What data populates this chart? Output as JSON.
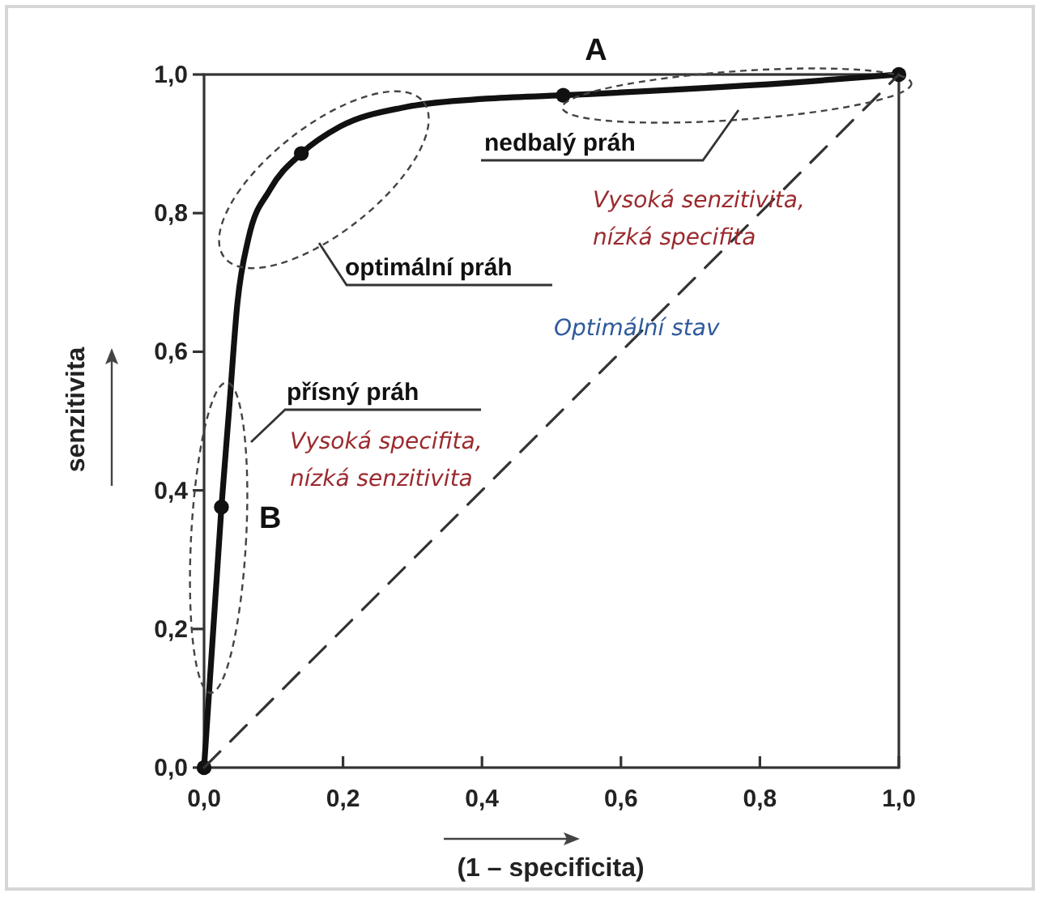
{
  "chart_data": {
    "type": "line",
    "xlabel": "(1 – specificita)",
    "ylabel": "senzitivita",
    "xlim": [
      0,
      1
    ],
    "ylim": [
      0,
      1
    ],
    "xticks": [
      {
        "value": 0,
        "label": "0,0"
      },
      {
        "value": 0.2,
        "label": "0,2"
      },
      {
        "value": 0.4,
        "label": "0,4"
      },
      {
        "value": 0.6,
        "label": "0,6"
      },
      {
        "value": 0.8,
        "label": "0,8"
      },
      {
        "value": 1,
        "label": "1,0"
      }
    ],
    "yticks": [
      {
        "value": 0,
        "label": "0,0"
      },
      {
        "value": 0.2,
        "label": "0,2"
      },
      {
        "value": 0.4,
        "label": "0,4"
      },
      {
        "value": 0.6,
        "label": "0,6"
      },
      {
        "value": 0.8,
        "label": "0,8"
      },
      {
        "value": 1,
        "label": "1,0"
      }
    ],
    "grid": false,
    "series": [
      {
        "color": "#111111",
        "line_style": "solid",
        "marker": "none",
        "x": [
          0,
          0.025,
          0.036,
          0.048,
          0.064,
          0.095,
          0.14,
          0.196,
          0.29,
          0.405,
          0.517,
          0.87,
          1
        ],
        "values": [
          0,
          0.376,
          0.516,
          0.67,
          0.764,
          0.834,
          0.886,
          0.925,
          0.953,
          0.965,
          0.97,
          0.99,
          1
        ]
      },
      {
        "type": "scatter",
        "color": "#111111",
        "marker": "circle",
        "x": [
          0,
          0.025,
          0.14,
          0.517,
          1
        ],
        "values": [
          0,
          0.376,
          0.886,
          0.97,
          1
        ]
      },
      {
        "color": "#333333",
        "line_style": "dashed",
        "marker": "none",
        "x": [
          0,
          1
        ],
        "values": [
          0,
          1
        ]
      }
    ],
    "annotations": [
      "A",
      "nedbalý práh",
      "optimální práh",
      "přísný práh",
      "B",
      "Vysoká senzitivita,\nnízká specifita",
      "Vysoká specifita,\nnízká senzitivita",
      "Optimální stav"
    ]
  }
}
